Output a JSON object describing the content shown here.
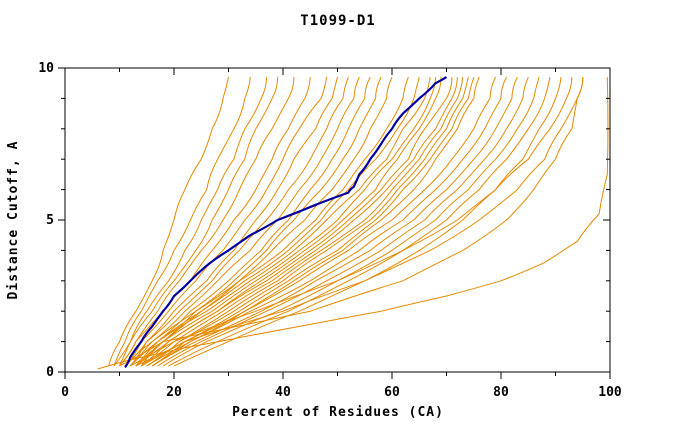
{
  "title": "T1099-D1",
  "colors": {
    "model_curves": "#e68a00",
    "highlight_curve": "#0000a0",
    "axis": "#000000",
    "background": "#ffffff"
  },
  "chart_data": {
    "type": "line",
    "title": "T1099-D1",
    "xlabel": "Percent of Residues (CA)",
    "ylabel": "Distance Cutoff, A",
    "xlim": [
      0,
      100
    ],
    "ylim": [
      0,
      10
    ],
    "x_major_ticks": [
      0,
      20,
      40,
      60,
      80,
      100
    ],
    "x_minor_step": 10,
    "y_major_ticks": [
      0,
      5,
      10
    ],
    "y_minor_step": 1,
    "grid": false,
    "legend": "none",
    "description": "GDT-style plot: each curve shows percent of CA residues (x) under a distance cutoff in Angstroms (y). Orange curves are individual models; the dark blue curve is the highlighted model.",
    "y_levels": [
      0.2,
      1,
      2,
      3,
      4,
      5,
      6,
      7,
      8,
      9,
      9.7
    ],
    "model_series_x": [
      [
        8,
        10,
        13,
        16,
        18,
        20,
        22,
        25,
        27,
        29,
        30
      ],
      [
        9,
        11,
        14,
        17,
        20,
        23,
        26,
        28,
        31,
        33,
        34
      ],
      [
        10,
        12,
        15,
        19,
        22,
        25,
        28,
        31,
        33,
        36,
        37
      ],
      [
        9,
        12,
        16,
        20,
        24,
        27,
        30,
        33,
        35,
        38,
        39
      ],
      [
        10,
        13,
        17,
        21,
        25,
        29,
        32,
        35,
        38,
        41,
        42
      ],
      [
        10,
        13,
        18,
        23,
        27,
        31,
        35,
        38,
        41,
        44,
        45
      ],
      [
        11,
        14,
        19,
        24,
        29,
        33,
        37,
        40,
        43,
        47,
        48
      ],
      [
        11,
        15,
        20,
        26,
        31,
        35,
        39,
        42,
        46,
        49,
        50
      ],
      [
        12,
        15,
        21,
        27,
        32,
        37,
        41,
        45,
        48,
        51,
        52
      ],
      [
        12,
        16,
        22,
        28,
        34,
        39,
        43,
        47,
        50,
        53,
        54
      ],
      [
        13,
        17,
        23,
        30,
        36,
        41,
        45,
        49,
        52,
        55,
        56
      ],
      [
        13,
        18,
        24,
        31,
        37,
        42,
        47,
        51,
        54,
        57,
        58
      ],
      [
        14,
        18,
        25,
        32,
        38,
        44,
        49,
        53,
        56,
        59,
        60
      ],
      [
        11,
        16,
        24,
        32,
        40,
        46,
        51,
        55,
        59,
        62,
        63
      ],
      [
        12,
        17,
        25,
        33,
        41,
        47,
        52,
        57,
        61,
        64,
        65
      ],
      [
        12,
        17,
        26,
        34,
        42,
        48,
        54,
        59,
        62,
        66,
        67
      ],
      [
        13,
        18,
        27,
        35,
        43,
        50,
        55,
        60,
        64,
        67,
        68
      ],
      [
        13,
        19,
        28,
        36,
        44,
        51,
        57,
        61,
        65,
        68,
        69
      ],
      [
        14,
        19,
        28,
        37,
        45,
        52,
        58,
        63,
        66,
        70,
        71
      ],
      [
        14,
        20,
        29,
        38,
        46,
        53,
        59,
        64,
        68,
        71,
        72
      ],
      [
        15,
        21,
        30,
        39,
        47,
        55,
        60,
        65,
        69,
        72,
        73
      ],
      [
        15,
        21,
        31,
        40,
        48,
        56,
        61,
        66,
        70,
        73,
        74
      ],
      [
        16,
        22,
        32,
        41,
        50,
        57,
        62,
        67,
        71,
        74,
        75
      ],
      [
        16,
        23,
        33,
        42,
        51,
        58,
        64,
        68,
        72,
        75,
        76
      ],
      [
        14,
        22,
        33,
        43,
        52,
        60,
        66,
        71,
        75,
        78,
        79
      ],
      [
        15,
        23,
        34,
        45,
        54,
        62,
        68,
        73,
        77,
        80,
        81
      ],
      [
        16,
        24,
        36,
        46,
        56,
        64,
        70,
        75,
        79,
        82,
        83
      ],
      [
        17,
        25,
        37,
        48,
        58,
        66,
        72,
        77,
        81,
        84,
        85
      ],
      [
        18,
        26,
        39,
        50,
        60,
        68,
        74,
        79,
        83,
        86,
        87
      ],
      [
        19,
        28,
        41,
        52,
        62,
        70,
        76,
        81,
        85,
        88,
        89
      ],
      [
        20,
        30,
        43,
        55,
        65,
        73,
        79,
        84,
        87,
        90,
        91
      ],
      [
        12,
        20,
        35,
        50,
        62,
        72,
        79,
        85,
        89,
        92,
        93
      ],
      [
        13,
        22,
        40,
        55,
        67,
        76,
        83,
        88,
        91,
        94,
        95
      ],
      [
        10,
        18,
        45,
        62,
        73,
        81,
        86,
        90,
        93,
        94,
        95
      ]
    ],
    "outlier_series_points": [
      [
        6,
        0.1
      ],
      [
        12,
        0.4
      ],
      [
        22,
        0.8
      ],
      [
        34,
        1.2
      ],
      [
        46,
        1.6
      ],
      [
        58,
        2.0
      ],
      [
        70,
        2.5
      ],
      [
        80,
        3.0
      ],
      [
        88,
        3.6
      ],
      [
        94,
        4.3
      ],
      [
        98,
        5.2
      ],
      [
        99.5,
        6.5
      ],
      [
        99.5,
        9.7
      ]
    ],
    "highlight_series_points": [
      [
        11,
        0.15
      ],
      [
        12,
        0.5
      ],
      [
        14,
        1
      ],
      [
        16,
        1.5
      ],
      [
        18,
        2
      ],
      [
        20,
        2.5
      ],
      [
        23,
        3
      ],
      [
        26,
        3.5
      ],
      [
        30,
        4
      ],
      [
        34,
        4.5
      ],
      [
        39,
        5
      ],
      [
        46,
        5.5
      ],
      [
        52,
        5.9
      ],
      [
        53,
        6.1
      ],
      [
        54,
        6.5
      ],
      [
        56,
        7
      ],
      [
        58,
        7.5
      ],
      [
        60,
        8
      ],
      [
        62,
        8.5
      ],
      [
        65,
        9
      ],
      [
        68,
        9.5
      ],
      [
        70,
        9.7
      ]
    ]
  }
}
